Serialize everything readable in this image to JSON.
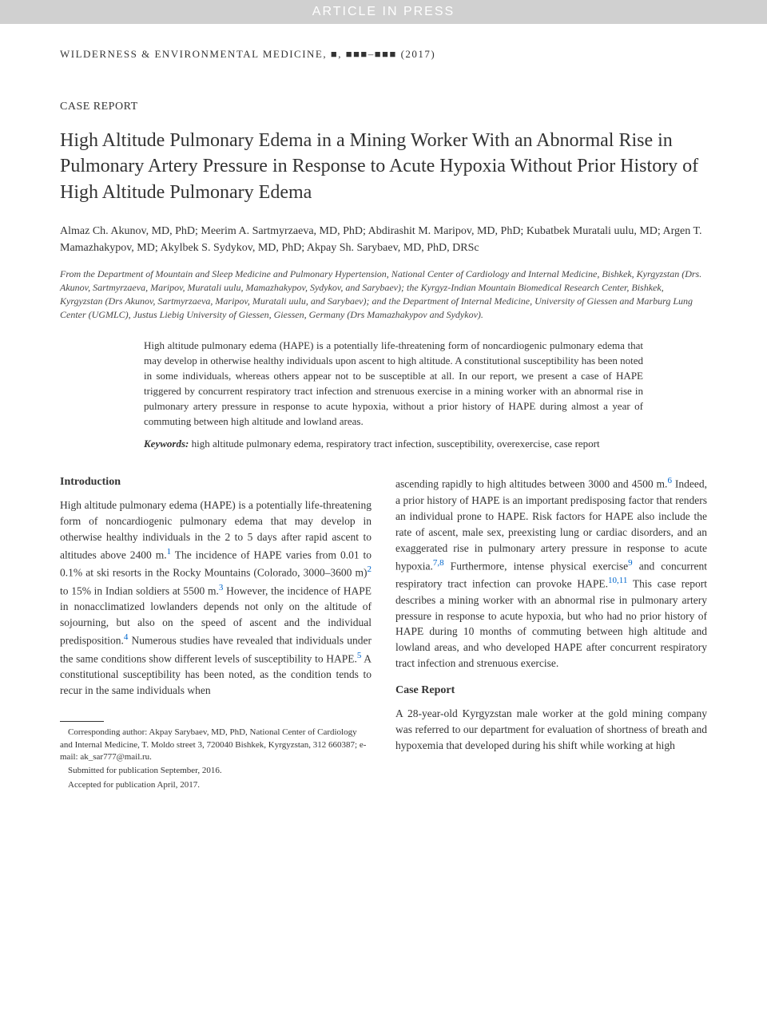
{
  "banner": "ARTICLE IN PRESS",
  "journal": {
    "name": "WILDERNESS & ENVIRONMENTAL MEDICINE,",
    "issue": "■, ■■■–■■■",
    "year": "(2017)"
  },
  "section_label": "CASE REPORT",
  "title": "High Altitude Pulmonary Edema in a Mining Worker With an Abnormal Rise in Pulmonary Artery Pressure in Response to Acute Hypoxia Without Prior History of High Altitude Pulmonary Edema",
  "authors": "Almaz Ch. Akunov, MD, PhD; Meerim A. Sartmyrzaeva, MD, PhD; Abdirashit M. Maripov, MD, PhD; Kubatbek Muratali uulu, MD; Argen T. Mamazhakypov, MD; Akylbek S. Sydykov, MD, PhD; Akpay Sh. Sarybaev, MD, PhD, DRSc",
  "affiliations": "From the Department of Mountain and Sleep Medicine and Pulmonary Hypertension, National Center of Cardiology and Internal Medicine, Bishkek, Kyrgyzstan (Drs. Akunov, Sartmyrzaeva, Maripov, Muratali uulu, Mamazhakypov, Sydykov, and Sarybaev); the Kyrgyz-Indian Mountain Biomedical Research Center, Bishkek, Kyrgyzstan (Drs Akunov, Sartmyrzaeva, Maripov, Muratali uulu, and Sarybaev); and the Department of Internal Medicine, University of Giessen and Marburg Lung Center (UGMLC), Justus Liebig University of Giessen, Giessen, Germany (Drs Mamazhakypov and Sydykov).",
  "abstract": "High altitude pulmonary edema (HAPE) is a potentially life-threatening form of noncardiogenic pulmonary edema that may develop in otherwise healthy individuals upon ascent to high altitude. A constitutional susceptibility has been noted in some individuals, whereas others appear not to be susceptible at all. In our report, we present a case of HAPE triggered by concurrent respiratory tract infection and strenuous exercise in a mining worker with an abnormal rise in pulmonary artery pressure in response to acute hypoxia, without a prior history of HAPE during almost a year of commuting between high altitude and lowland areas.",
  "keywords_label": "Keywords:",
  "keywords": " high altitude pulmonary edema, respiratory tract infection, susceptibility, overexercise, case report",
  "intro_heading": "Introduction",
  "intro_p1a": "High altitude pulmonary edema (HAPE) is a potentially life-threatening form of noncardiogenic pulmonary edema that may develop in otherwise healthy individuals in the 2 to 5 days after rapid ascent to altitudes above 2400 m.",
  "intro_p1b": " The incidence of HAPE varies from 0.01 to 0.1% at ski resorts in the Rocky Mountains (Colorado, 3000–3600 m)",
  "intro_p1c": " to 15% in Indian soldiers at 5500 m.",
  "intro_p1d": " However, the incidence of HAPE in nonacclimatized lowlanders depends not only on the altitude of sojourning, but also on the speed of ascent and the individual predisposition.",
  "intro_p1e": " Numerous studies have revealed that individuals under the same conditions show different levels of susceptibility to HAPE.",
  "intro_p1f": " A constitutional susceptibility has been noted, as the condition tends to recur in the same individuals when ",
  "intro_p2a": "ascending rapidly to high altitudes between 3000 and 4500 m.",
  "intro_p2b": " Indeed, a prior history of HAPE is an important predisposing factor that renders an individual prone to HAPE. Risk factors for HAPE also include the rate of ascent, male sex, preexisting lung or cardiac disorders, and an exaggerated rise in pulmonary artery pressure in response to acute hypoxia.",
  "intro_p2c": " Furthermore, intense physical exercise",
  "intro_p2d": " and concurrent respiratory tract infection can provoke HAPE.",
  "intro_p2e": " This case report describes a mining worker with an abnormal rise in pulmonary artery pressure in response to acute hypoxia, but who had no prior history of HAPE during 10 months of commuting between high altitude and lowland areas, and who developed HAPE after concurrent respiratory tract infection and strenuous exercise.",
  "case_heading": "Case Report",
  "case_p1": "A 28-year-old Kyrgyzstan male worker at the gold mining company was referred to our department for evaluation of shortness of breath and hypoxemia that developed during his shift while working at high",
  "refs": {
    "r1": "1",
    "r2": "2",
    "r3": "3",
    "r4": "4",
    "r5": "5",
    "r6": "6",
    "r78": "7,8",
    "r9": "9",
    "r1011": "10,11"
  },
  "footnote": {
    "corresponding": "Corresponding author: Akpay Sarybaev, MD, PhD, National Center of Cardiology and Internal Medicine, T. Moldo street 3, 720040 Bishkek, Kyrgyzstan, 312 660387; e-mail: ak_sar777@mail.ru.",
    "submitted": "Submitted for publication September, 2016.",
    "accepted": "Accepted for publication April, 2017."
  }
}
